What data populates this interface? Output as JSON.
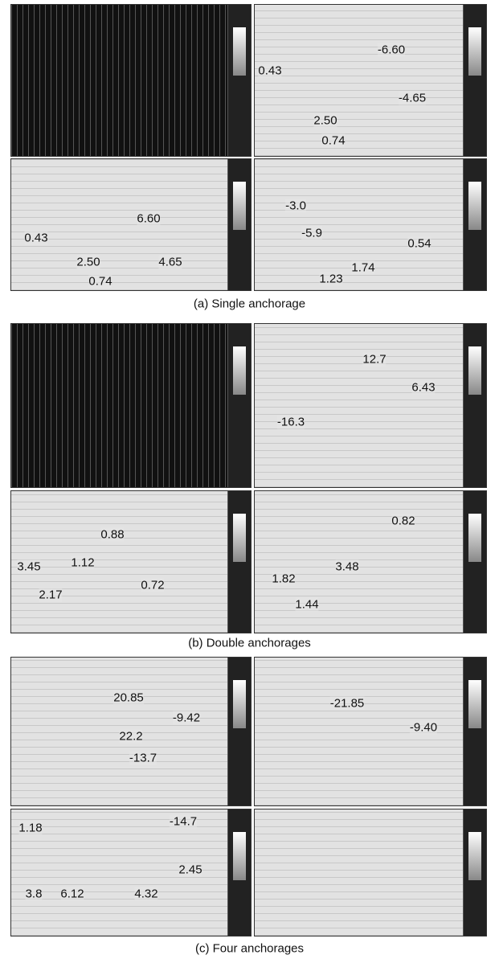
{
  "groups": [
    {
      "caption": "(a) Single anchorage",
      "panels": [
        {},
        {
          "labels": [
            "-6.60",
            "0.43",
            "-4.65",
            "2.50",
            "0.74"
          ]
        },
        {
          "labels": [
            "6.60",
            "0.43",
            "4.65",
            "2.50",
            "0.74"
          ]
        },
        {
          "labels": [
            "-3.0",
            "-5.9",
            "0.54",
            "1.74",
            "1.23"
          ]
        }
      ]
    },
    {
      "caption": "(b) Double anchorages",
      "panels": [
        {},
        {
          "labels": [
            "12.7",
            "6.43",
            "-16.3"
          ]
        },
        {
          "labels": [
            "0.88",
            "3.45",
            "1.12",
            "2.17",
            "0.72"
          ]
        },
        {
          "labels": [
            "0.82",
            "3.48",
            "1.82",
            "1.44"
          ]
        }
      ]
    },
    {
      "caption": "(c) Four anchorages",
      "panels": [
        {
          "labels": [
            "20.85",
            "-9.42",
            "22.2",
            "-13.7"
          ]
        },
        {
          "labels": [
            "-21.85",
            "-9.40"
          ]
        },
        {
          "labels": [
            "1.18",
            "-14.7",
            "2.45",
            "3.8",
            "6.12",
            "4.32"
          ]
        },
        {}
      ]
    }
  ]
}
